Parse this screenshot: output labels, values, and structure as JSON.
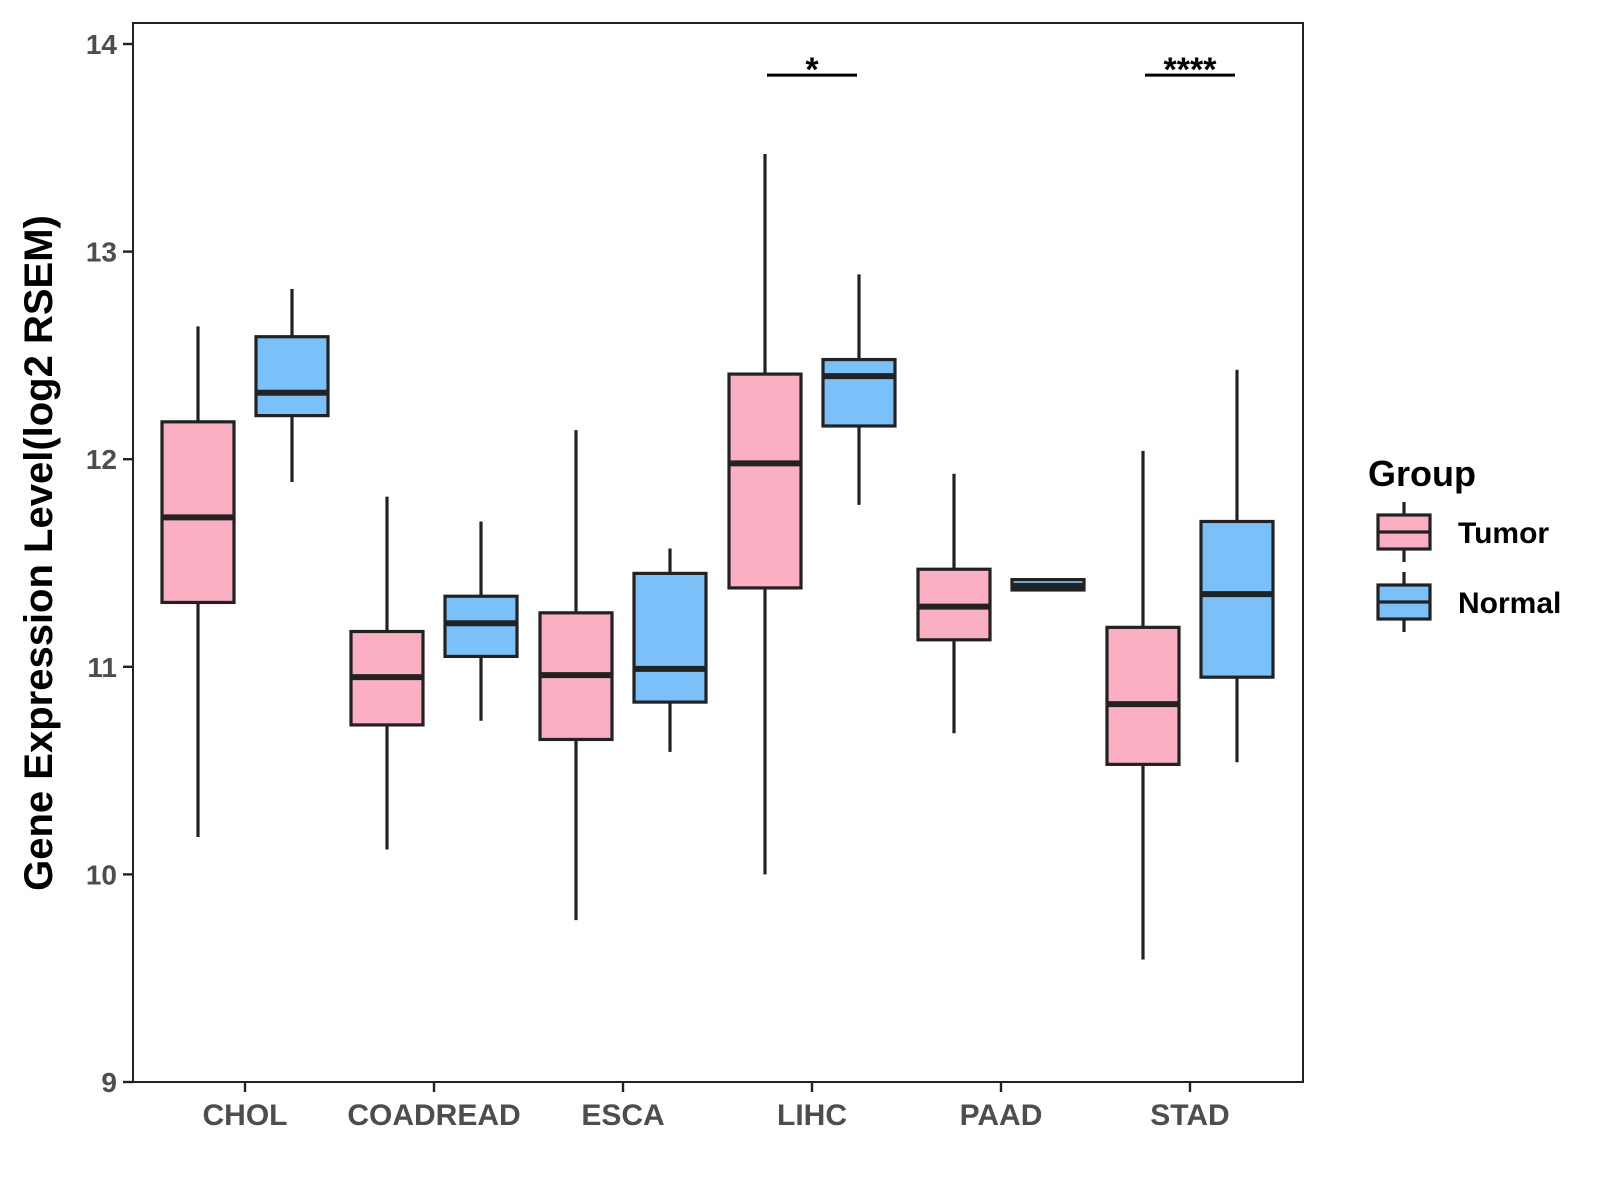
{
  "chart_data": {
    "type": "boxplot",
    "title": "",
    "xlabel": "",
    "ylabel": "Gene Expression Level(log2 RSEM)",
    "ylim": [
      9,
      14
    ],
    "yticks": [
      9,
      10,
      11,
      12,
      13,
      14
    ],
    "grid": false,
    "categories": [
      "CHOL",
      "COADREAD",
      "ESCA",
      "LIHC",
      "PAAD",
      "STAD"
    ],
    "legend": {
      "title": "Group",
      "position": "right",
      "entries": [
        {
          "name": "Tumor",
          "color": "#FBAFC2"
        },
        {
          "name": "Normal",
          "color": "#79C1F8"
        }
      ]
    },
    "series": [
      {
        "name": "Tumor",
        "color": "#FBAFC2",
        "boxes": [
          {
            "category": "CHOL",
            "min": 10.18,
            "q1": 11.31,
            "median": 11.72,
            "q3": 12.18,
            "max": 12.64
          },
          {
            "category": "COADREAD",
            "min": 10.12,
            "q1": 10.72,
            "median": 10.95,
            "q3": 11.17,
            "max": 11.82
          },
          {
            "category": "ESCA",
            "min": 9.78,
            "q1": 10.65,
            "median": 10.96,
            "q3": 11.26,
            "max": 12.14
          },
          {
            "category": "LIHC",
            "min": 10.0,
            "q1": 11.38,
            "median": 11.98,
            "q3": 12.41,
            "max": 13.47
          },
          {
            "category": "PAAD",
            "min": 10.68,
            "q1": 11.13,
            "median": 11.29,
            "q3": 11.47,
            "max": 11.93
          },
          {
            "category": "STAD",
            "min": 9.59,
            "q1": 10.53,
            "median": 10.82,
            "q3": 11.19,
            "max": 12.04
          }
        ]
      },
      {
        "name": "Normal",
        "color": "#79C1F8",
        "boxes": [
          {
            "category": "CHOL",
            "min": 11.89,
            "q1": 12.21,
            "median": 12.32,
            "q3": 12.59,
            "max": 12.82
          },
          {
            "category": "COADREAD",
            "min": 10.74,
            "q1": 11.05,
            "median": 11.21,
            "q3": 11.34,
            "max": 11.7
          },
          {
            "category": "ESCA",
            "min": 10.59,
            "q1": 10.83,
            "median": 10.99,
            "q3": 11.45,
            "max": 11.57
          },
          {
            "category": "LIHC",
            "min": 11.78,
            "q1": 12.16,
            "median": 12.4,
            "q3": 12.48,
            "max": 12.89
          },
          {
            "category": "PAAD",
            "min": 11.37,
            "q1": 11.37,
            "median": 11.39,
            "q3": 11.42,
            "max": 11.42
          },
          {
            "category": "STAD",
            "min": 10.54,
            "q1": 10.95,
            "median": 11.35,
            "q3": 11.7,
            "max": 12.43
          }
        ]
      }
    ],
    "annotations": [
      {
        "category": "LIHC",
        "text": "*",
        "y": 13.85
      },
      {
        "category": "STAD",
        "text": "****",
        "y": 13.85
      }
    ]
  }
}
